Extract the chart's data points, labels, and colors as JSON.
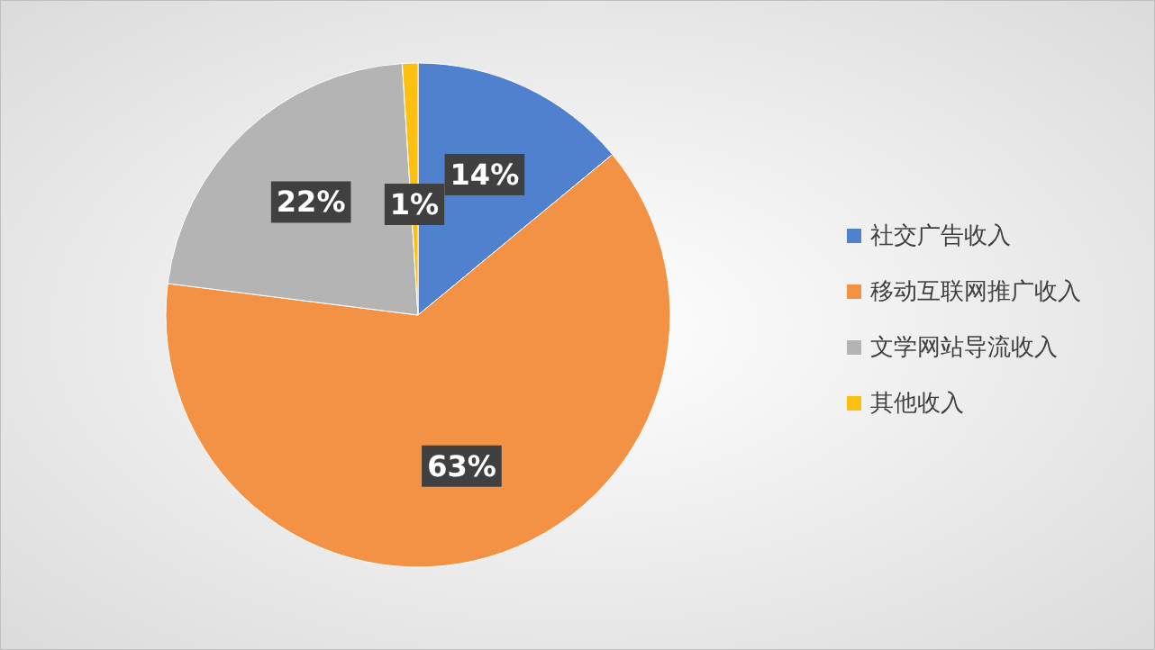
{
  "chart_data": {
    "type": "pie",
    "categories": [
      "社交广告收入",
      "移动互联网推广收入",
      "文学网站导流收入",
      "其他收入"
    ],
    "values": [
      14,
      63,
      22,
      1
    ],
    "colors": [
      "#4f81cf",
      "#f39244",
      "#b4b4b4",
      "#fdc010"
    ],
    "value_labels": [
      "14%",
      "63%",
      "22%",
      "1%"
    ],
    "legend": "right"
  }
}
